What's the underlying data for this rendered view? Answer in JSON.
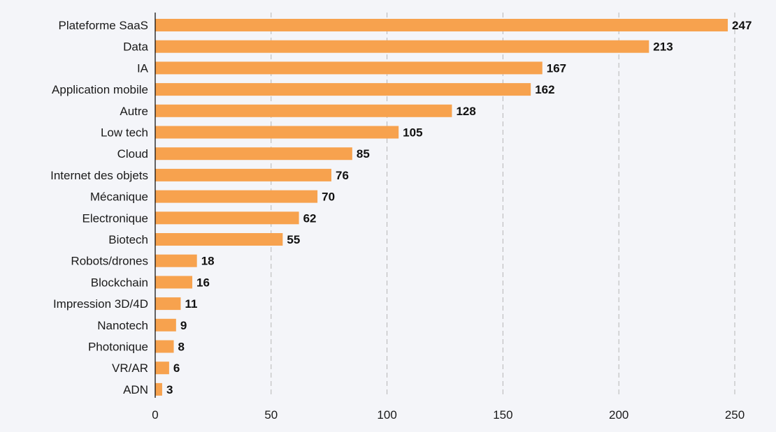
{
  "chart_data": {
    "type": "bar",
    "orientation": "horizontal",
    "title": "",
    "xlabel": "",
    "ylabel": "",
    "categories": [
      "Plateforme SaaS",
      "Data",
      "IA",
      "Application mobile",
      "Autre",
      "Low tech",
      "Cloud",
      "Internet des objets",
      "Mécanique",
      "Electronique",
      "Biotech",
      "Robots/drones",
      "Blockchain",
      "Impression 3D/4D",
      "Nanotech",
      "Photonique",
      "VR/AR",
      "ADN"
    ],
    "values": [
      247,
      213,
      167,
      162,
      128,
      105,
      85,
      76,
      70,
      62,
      55,
      18,
      16,
      11,
      9,
      8,
      6,
      3
    ],
    "xlim": [
      0,
      250
    ],
    "xticks": [
      0,
      50,
      100,
      150,
      200,
      250
    ],
    "grid": "vertical-dashed",
    "legend": "none",
    "bar_color": "#f7a24e",
    "background_color": "#f4f5f9",
    "gridline_color": "#b5b5b5",
    "text_color": "#1a1a1a"
  }
}
